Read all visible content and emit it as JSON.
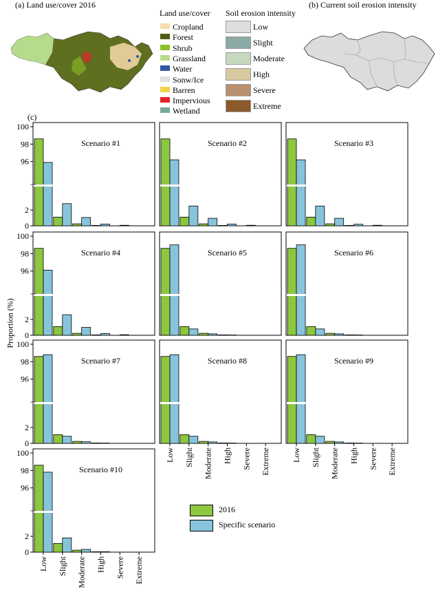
{
  "panel_a": {
    "label": "(a) Land use/cover 2016"
  },
  "panel_b": {
    "label": "(b) Current soil erosion intensity"
  },
  "panel_c": {
    "label": "(c)"
  },
  "land_use_legend": {
    "title": "Land use/cover",
    "items": [
      {
        "label": "Cropland",
        "color": "#f7dcae"
      },
      {
        "label": "Forest",
        "color": "#4f5d17"
      },
      {
        "label": "Shrub",
        "color": "#8cbf2a"
      },
      {
        "label": "Grassland",
        "color": "#b6db8c"
      },
      {
        "label": "Water",
        "color": "#2f57a8"
      },
      {
        "label": "Sonw/Ice",
        "color": "#e0e0e0"
      },
      {
        "label": "Barren",
        "color": "#f2d44a"
      },
      {
        "label": "Impervious",
        "color": "#e3242b"
      },
      {
        "label": "Wetland",
        "color": "#7aa89e"
      }
    ]
  },
  "erosion_legend": {
    "title": "Soil erosion intensity",
    "items": [
      {
        "label": "Low",
        "color": "#dedede"
      },
      {
        "label": "Slight",
        "color": "#8aaaa5"
      },
      {
        "label": "Moderate",
        "color": "#c6d9c0"
      },
      {
        "label": "High",
        "color": "#d9c9a0"
      },
      {
        "label": "Severe",
        "color": "#b8906e"
      },
      {
        "label": "Extreme",
        "color": "#8a5a2a"
      }
    ]
  },
  "colors": {
    "bar_2016": "#8dc63f",
    "bar_scenario": "#87c4dc",
    "map_a_base": "#5f6f20",
    "map_b_base": "#dcdcdc"
  },
  "chart_data": {
    "type": "bar",
    "ylabel": "Proportion (%)",
    "categories": [
      "Low",
      "Slight",
      "Moderate",
      "High",
      "Severe",
      "Extreme"
    ],
    "yticks": [
      "100",
      "98",
      "96",
      "2",
      "0"
    ],
    "broken_axis": {
      "lower_range": [
        0,
        4
      ],
      "upper_range": [
        94,
        100
      ]
    },
    "legend": [
      {
        "label": "2016",
        "color": "#8dc63f"
      },
      {
        "label": "Specific scenario",
        "color": "#87c4dc"
      }
    ],
    "baseline_2016": [
      98.6,
      1.1,
      0.25,
      0.05,
      0.02,
      0.0
    ],
    "panels": [
      {
        "title": "Scenario #1",
        "values_2016": [
          98.6,
          1.1,
          0.25,
          0.05,
          0.02,
          0.0
        ],
        "values_scenario": [
          95.9,
          2.8,
          1.05,
          0.22,
          0.07,
          0.02
        ]
      },
      {
        "title": "Scenario #2",
        "values_2016": [
          98.6,
          1.1,
          0.25,
          0.05,
          0.02,
          0.0
        ],
        "values_scenario": [
          96.2,
          2.5,
          0.95,
          0.22,
          0.07,
          0.02
        ]
      },
      {
        "title": "Scenario #3",
        "values_2016": [
          98.6,
          1.1,
          0.25,
          0.05,
          0.02,
          0.0
        ],
        "values_scenario": [
          96.2,
          2.5,
          0.95,
          0.2,
          0.07,
          0.02
        ]
      },
      {
        "title": "Scenario #4",
        "values_2016": [
          98.6,
          1.1,
          0.25,
          0.05,
          0.02,
          0.0
        ],
        "values_scenario": [
          96.1,
          2.6,
          1.0,
          0.22,
          0.07,
          0.02
        ]
      },
      {
        "title": "Scenario #5",
        "values_2016": [
          98.6,
          1.1,
          0.25,
          0.05,
          0.02,
          0.0
        ],
        "values_scenario": [
          99.0,
          0.8,
          0.18,
          0.04,
          0.01,
          0.0
        ]
      },
      {
        "title": "Scenario #6",
        "values_2016": [
          98.6,
          1.1,
          0.25,
          0.05,
          0.02,
          0.0
        ],
        "values_scenario": [
          99.0,
          0.8,
          0.18,
          0.04,
          0.01,
          0.0
        ]
      },
      {
        "title": "Scenario #7",
        "values_2016": [
          98.6,
          1.1,
          0.25,
          0.05,
          0.02,
          0.0
        ],
        "values_scenario": [
          98.8,
          0.9,
          0.2,
          0.04,
          0.01,
          0.0
        ]
      },
      {
        "title": "Scenario #8",
        "values_2016": [
          98.6,
          1.1,
          0.25,
          0.05,
          0.02,
          0.0
        ],
        "values_scenario": [
          98.8,
          0.9,
          0.18,
          0.04,
          0.01,
          0.0
        ]
      },
      {
        "title": "Scenario #9",
        "values_2016": [
          98.6,
          1.1,
          0.25,
          0.05,
          0.02,
          0.0
        ],
        "values_scenario": [
          98.8,
          0.9,
          0.18,
          0.04,
          0.01,
          0.0
        ]
      },
      {
        "title": "Scenario #10",
        "values_2016": [
          98.6,
          1.1,
          0.25,
          0.05,
          0.02,
          0.0
        ],
        "values_scenario": [
          97.8,
          1.8,
          0.35,
          0.05,
          0.02,
          0.0
        ]
      }
    ]
  }
}
